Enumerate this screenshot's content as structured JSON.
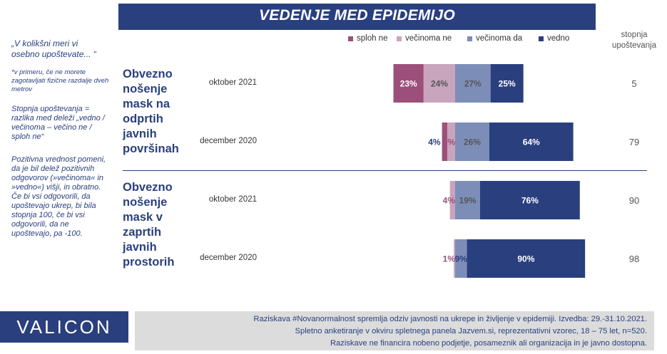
{
  "title": "VEDENJE MED EPIDEMIJO",
  "sidebar": {
    "question": "„V kolikšni meri vi osebno upoštevate... “",
    "note": "*v primeru, če ne morete zagotavljati fizične razdalje dveh metrov",
    "definition": "Stopnja upoštevanja = razlika med deleži „vedno / večinoma – večino ne / sploh ne“",
    "positive": "Pozitivna vrednost pomeni, da je bil delež pozitivnih odgovorov (»večinoma« in »vedno«) višji, in obratno. Če bi vsi odgovorili, da upoštevajo ukrep, bi bila stopnja 100, če bi vsi odgovorili, da ne upoštevajo, pa -100."
  },
  "legend": [
    {
      "label": "sploh ne",
      "color": "#9c4f7a"
    },
    {
      "label": "večinoma ne",
      "color": "#c9a4bd"
    },
    {
      "label": "večinoma da",
      "color": "#7c8eb8"
    },
    {
      "label": "vedno",
      "color": "#2a3f7e"
    }
  ],
  "score_header_line1": "stopnja",
  "score_header_line2": "upoštevanja",
  "groups": [
    {
      "label": "Obvezno nošenje mask na odprtih javnih površinah"
    },
    {
      "label": "Obvezno nošenje mask v zaprtih javnih prostorih"
    }
  ],
  "chart_data": {
    "type": "bar",
    "orientation": "horizontal",
    "stacked": "diverging",
    "categories": [
      "oktober 2021",
      "december 2020",
      "oktober 2021",
      "december 2020"
    ],
    "group_of_category": [
      0,
      0,
      1,
      1
    ],
    "series": [
      {
        "name": "sploh ne",
        "values": [
          23,
          4,
          0,
          0
        ]
      },
      {
        "name": "večinoma ne",
        "values": [
          24,
          6,
          4,
          1
        ]
      },
      {
        "name": "večinoma da",
        "values": [
          27,
          26,
          19,
          9
        ]
      },
      {
        "name": "vedno",
        "values": [
          25,
          64,
          76,
          90
        ]
      }
    ],
    "labels": [
      [
        "23%",
        "24%",
        "27%",
        "25%"
      ],
      [
        "4%",
        "6%",
        "26%",
        "64%"
      ],
      [
        "",
        "4%",
        "19%",
        "76%"
      ],
      [
        "",
        "1%",
        "9%",
        "90%"
      ]
    ],
    "stopnja_upostevanja": [
      "5",
      "79",
      "90",
      "98"
    ]
  },
  "footer": {
    "logo": "VALICON",
    "line1": "Raziskava #Novanormalnost spremlja odziv javnosti na ukrepe in življenje v epidemiji. Izvedba: 29.-31.10.2021.",
    "line2": "Spletno anketiranje v okviru spletnega panela Jazvem.si, reprezentativni vzorec, 18 – 75 let, n=520.",
    "line3": "Raziskave ne financira nobeno podjetje, posameznik ali organizacija in je javno dostopna."
  }
}
